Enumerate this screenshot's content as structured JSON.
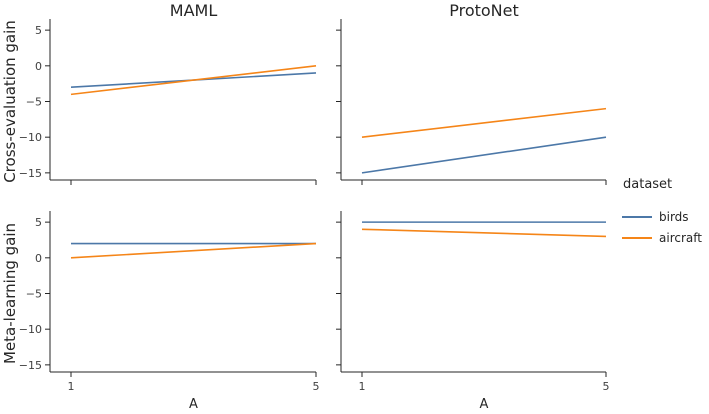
{
  "chart_data": {
    "type": "line",
    "columns": [
      "MAML",
      "ProtoNet"
    ],
    "rows": [
      "Cross-evaluation gain",
      "Meta-learning gain"
    ],
    "xlabel": "A",
    "x": [
      1,
      5
    ],
    "xticks": [
      1,
      5
    ],
    "ylim": [
      -16,
      6
    ],
    "yticks": [
      -15,
      -10,
      -5,
      0,
      5
    ],
    "legend": {
      "title": "dataset",
      "placement": "right",
      "entries": [
        {
          "label": "birds",
          "color": "#4c78a8"
        },
        {
          "label": "aircraft",
          "color": "#f58518"
        }
      ]
    },
    "panels": [
      {
        "row": "Cross-evaluation gain",
        "column": "MAML",
        "series": [
          {
            "name": "birds",
            "values": [
              -3,
              -1
            ]
          },
          {
            "name": "aircraft",
            "values": [
              -4,
              0
            ]
          }
        ]
      },
      {
        "row": "Cross-evaluation gain",
        "column": "ProtoNet",
        "series": [
          {
            "name": "birds",
            "values": [
              -15,
              -10
            ]
          },
          {
            "name": "aircraft",
            "values": [
              -10,
              -6
            ]
          }
        ]
      },
      {
        "row": "Meta-learning gain",
        "column": "MAML",
        "series": [
          {
            "name": "birds",
            "values": [
              2,
              2
            ]
          },
          {
            "name": "aircraft",
            "values": [
              0,
              2
            ]
          }
        ]
      },
      {
        "row": "Meta-learning gain",
        "column": "ProtoNet",
        "series": [
          {
            "name": "birds",
            "values": [
              5,
              5
            ]
          },
          {
            "name": "aircraft",
            "values": [
              4,
              3
            ]
          }
        ]
      }
    ]
  }
}
